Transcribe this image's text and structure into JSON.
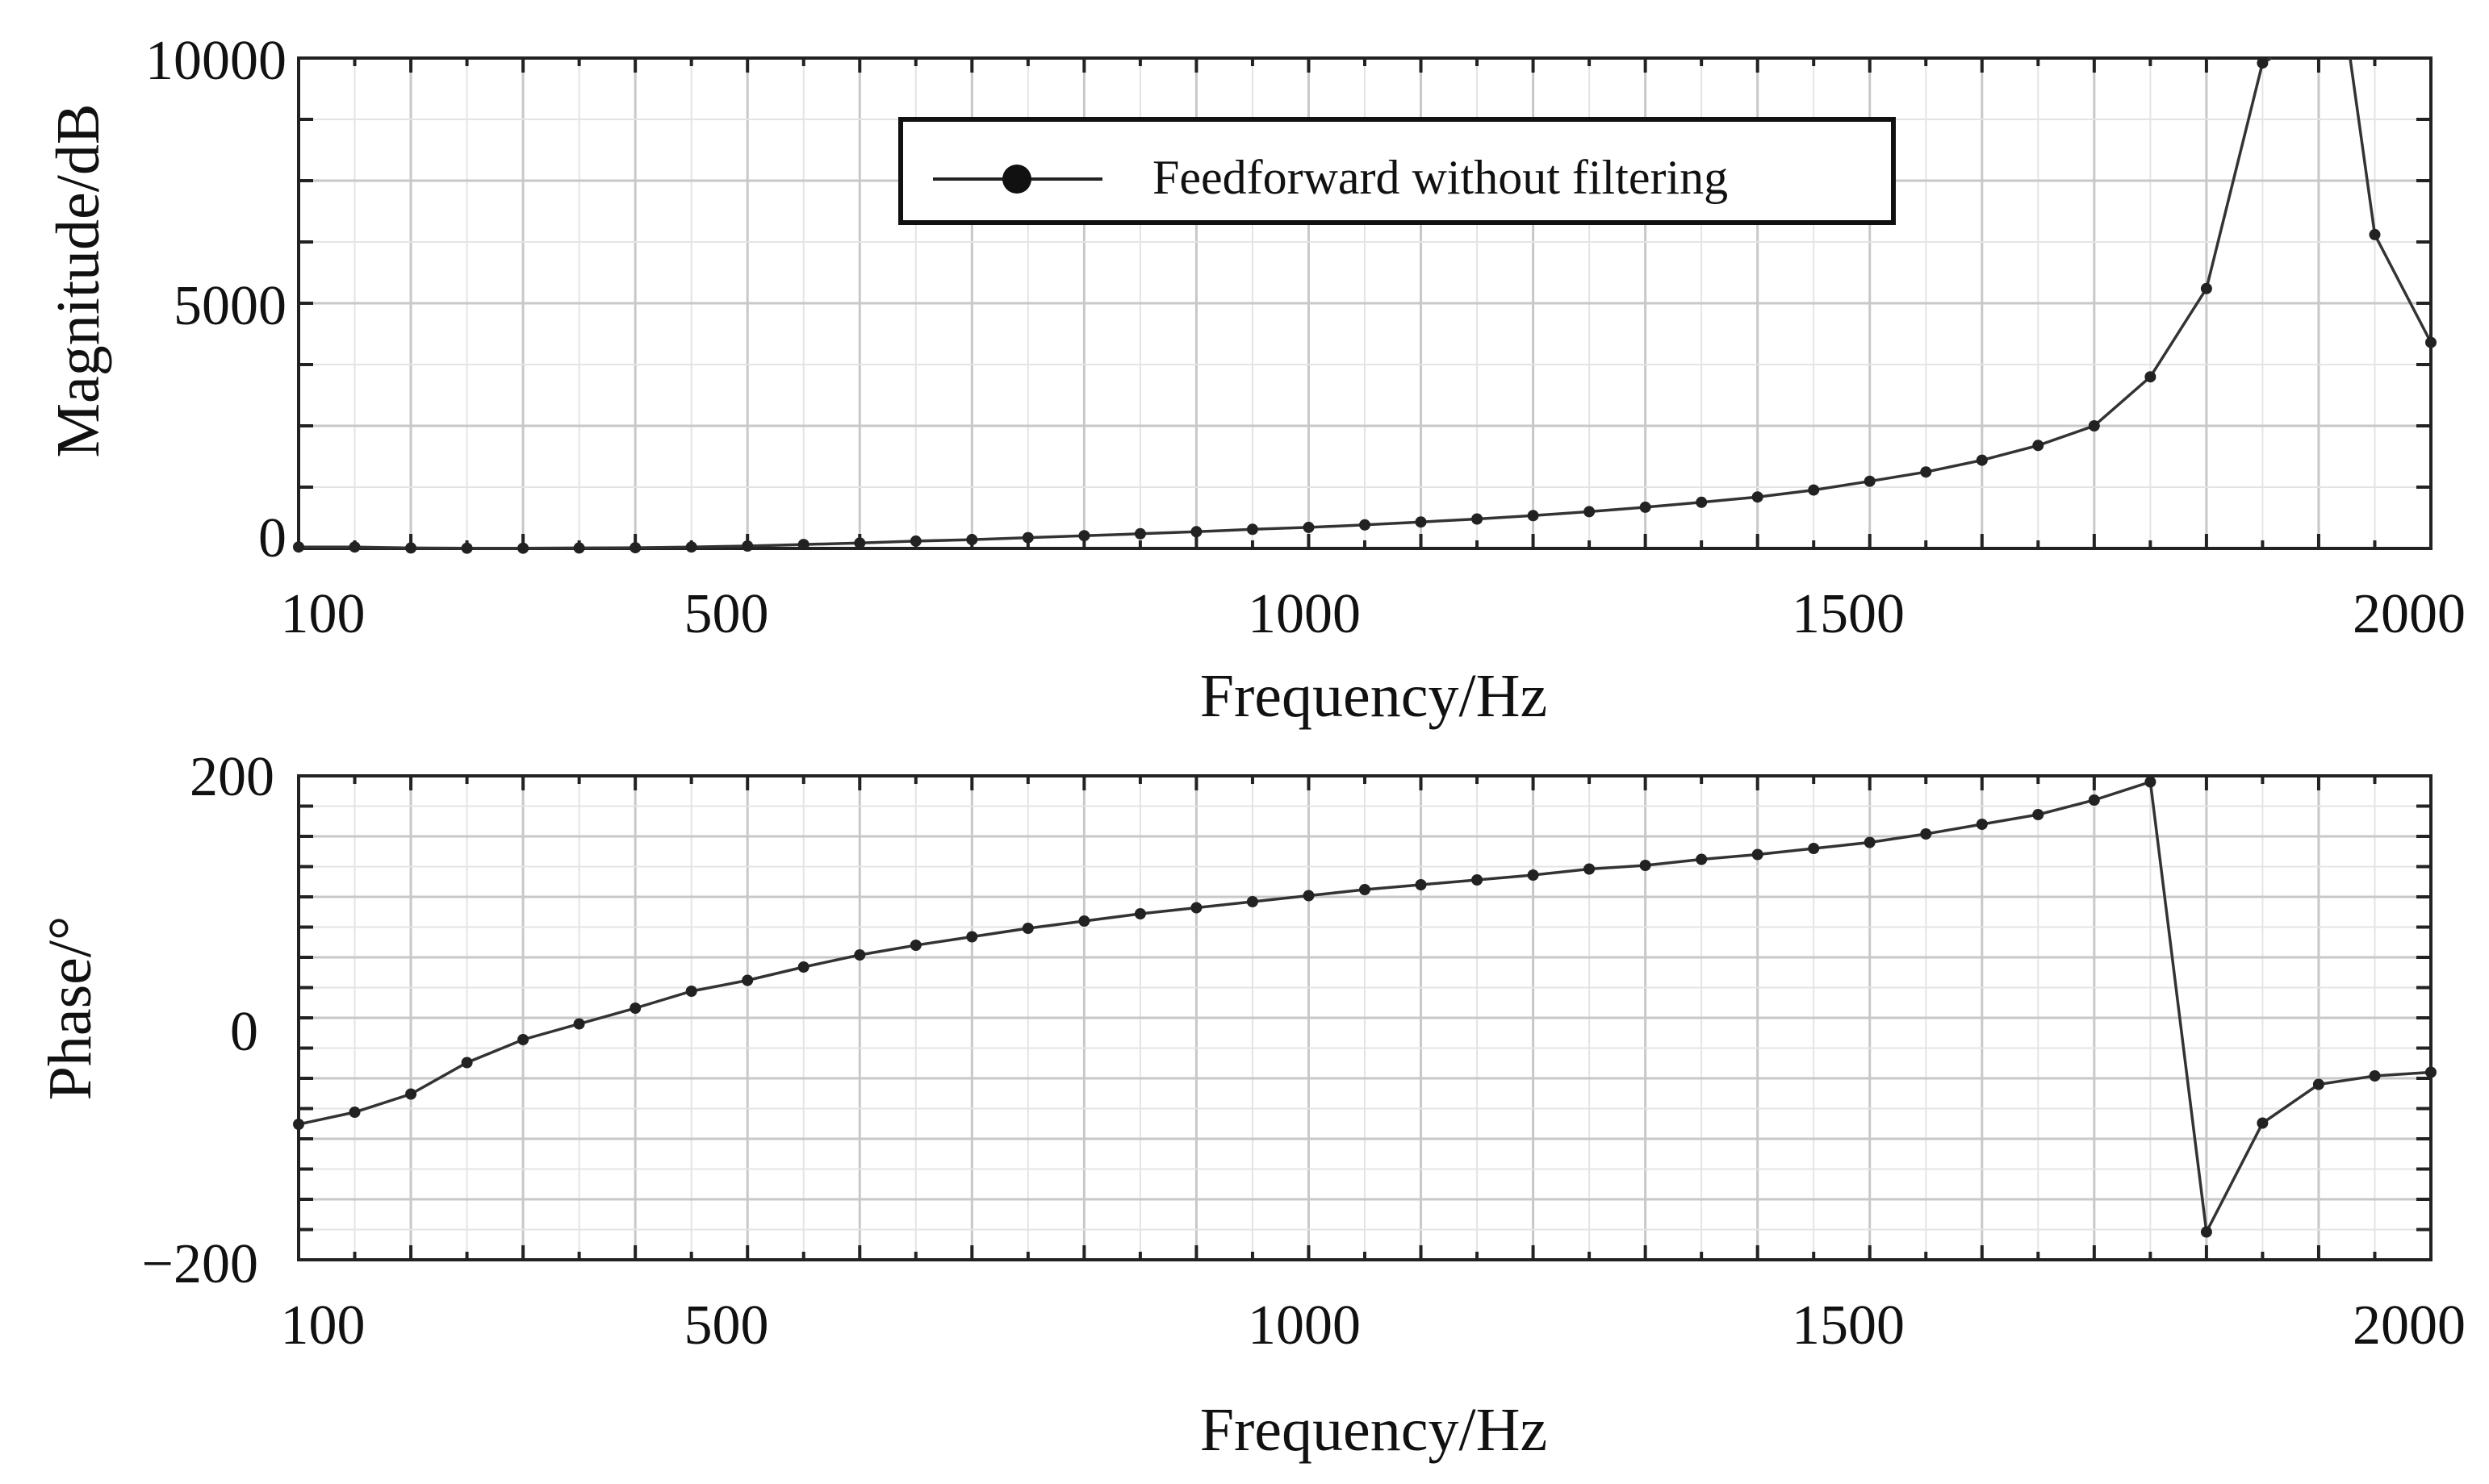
{
  "chart_data": [
    {
      "type": "line",
      "id": "magnitude",
      "title": "",
      "xlabel": "Frequency/Hz",
      "ylabel": "Magnitude/dB",
      "xlim": [
        100,
        2000
      ],
      "ylim": [
        0,
        10000
      ],
      "xticks": [
        100,
        500,
        1000,
        1500,
        2000
      ],
      "yticks": [
        0,
        5000,
        10000
      ],
      "xtick_labels": [
        "100",
        "500",
        "1000",
        "1500",
        "2000"
      ],
      "ytick_labels": [
        "0",
        "5000",
        "10000"
      ],
      "grid": true,
      "legend": {
        "position": "top-center",
        "entries": [
          "Feedforward without filtering"
        ]
      },
      "series": [
        {
          "name": "Feedforward without filtering",
          "x": [
            100,
            150,
            200,
            250,
            300,
            350,
            400,
            450,
            500,
            550,
            600,
            650,
            700,
            750,
            800,
            850,
            900,
            950,
            1000,
            1050,
            1100,
            1150,
            1200,
            1250,
            1300,
            1350,
            1400,
            1450,
            1500,
            1550,
            1600,
            1650,
            1700,
            1750,
            1800,
            1850,
            1900,
            1950,
            2000
          ],
          "y": [
            30,
            30,
            10,
            5,
            5,
            10,
            15,
            30,
            50,
            80,
            110,
            150,
            180,
            220,
            260,
            300,
            340,
            390,
            430,
            480,
            540,
            600,
            670,
            750,
            840,
            940,
            1050,
            1190,
            1370,
            1560,
            1800,
            2100,
            2500,
            3500,
            5300,
            9900,
            null,
            6400,
            4200
          ],
          "markers": true
        }
      ]
    },
    {
      "type": "line",
      "id": "phase",
      "title": "",
      "xlabel": "Frequency/Hz",
      "ylabel": "Phase/°",
      "xlim": [
        100,
        2000
      ],
      "ylim": [
        -200,
        200
      ],
      "xticks": [
        100,
        500,
        1000,
        1500,
        2000
      ],
      "yticks": [
        -200,
        0,
        200
      ],
      "xtick_labels": [
        "100",
        "500",
        "1000",
        "1500",
        "2000"
      ],
      "ytick_labels": [
        "−200",
        "0",
        "200"
      ],
      "grid": true,
      "series": [
        {
          "name": "Feedforward without filtering",
          "x": [
            100,
            150,
            200,
            250,
            300,
            350,
            400,
            450,
            500,
            550,
            600,
            650,
            700,
            750,
            800,
            850,
            900,
            950,
            1000,
            1050,
            1100,
            1150,
            1200,
            1250,
            1300,
            1350,
            1400,
            1450,
            1500,
            1550,
            1600,
            1650,
            1700,
            1750,
            1800,
            1850,
            1900,
            1950,
            2000
          ],
          "y": [
            -88,
            -78,
            -63,
            -37,
            -18,
            -5,
            8,
            22,
            31,
            42,
            52,
            60,
            67,
            74,
            80,
            86,
            91,
            96,
            101,
            106,
            110,
            114,
            118,
            123,
            126,
            131,
            135,
            140,
            145,
            152,
            160,
            168,
            180,
            195,
            -177,
            -87,
            -55,
            -48,
            -45
          ],
          "markers": true
        }
      ]
    }
  ]
}
